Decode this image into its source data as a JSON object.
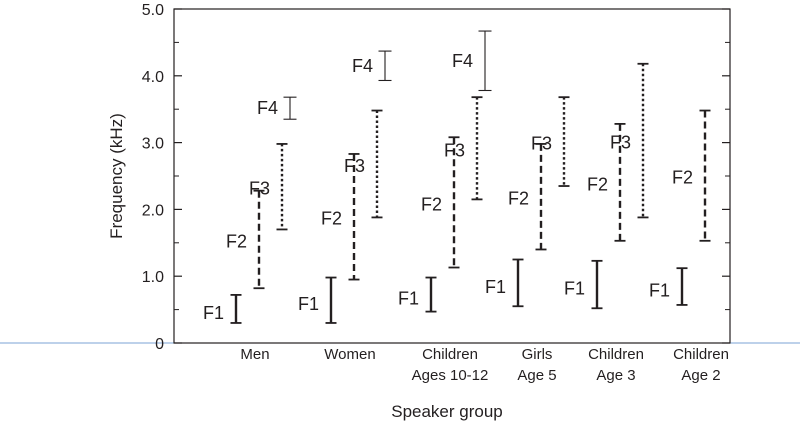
{
  "chart_data": {
    "type": "range",
    "title": "",
    "xlabel": "Speaker group",
    "ylabel": "Frequency (kHz)",
    "ylim": [
      0,
      5.0
    ],
    "yticks": [
      {
        "value": 0,
        "label": "0"
      },
      {
        "value": 1.0,
        "label": "1.0"
      },
      {
        "value": 2.0,
        "label": "2.0"
      },
      {
        "value": 3.0,
        "label": "3.0"
      },
      {
        "value": 4.0,
        "label": "4.0"
      },
      {
        "value": 5.0,
        "label": "5.0"
      }
    ],
    "grid": false,
    "line_styles": {
      "F1": "solid-thick",
      "F2": "dashed",
      "F3": "dotted",
      "F4": "solid-thin"
    },
    "groups": [
      {
        "label_lines": [
          "Men"
        ],
        "ranges": [
          {
            "formant": "F1",
            "low": 0.3,
            "high": 0.72
          },
          {
            "formant": "F2",
            "low": 0.82,
            "high": 2.28
          },
          {
            "formant": "F3",
            "low": 1.7,
            "high": 2.98
          },
          {
            "formant": "F4",
            "low": 3.35,
            "high": 3.68
          }
        ]
      },
      {
        "label_lines": [
          "Women"
        ],
        "ranges": [
          {
            "formant": "F1",
            "low": 0.3,
            "high": 0.98
          },
          {
            "formant": "F2",
            "low": 0.95,
            "high": 2.83
          },
          {
            "formant": "F3",
            "low": 1.88,
            "high": 3.48
          },
          {
            "formant": "F4",
            "low": 3.93,
            "high": 4.37
          }
        ]
      },
      {
        "label_lines": [
          "Children",
          "Ages 10-12"
        ],
        "ranges": [
          {
            "formant": "F1",
            "low": 0.47,
            "high": 0.98
          },
          {
            "formant": "F2",
            "low": 1.13,
            "high": 3.08
          },
          {
            "formant": "F3",
            "low": 2.15,
            "high": 3.68
          },
          {
            "formant": "F4",
            "low": 3.78,
            "high": 4.67
          }
        ]
      },
      {
        "label_lines": [
          "Girls",
          "Age 5"
        ],
        "ranges": [
          {
            "formant": "F1",
            "low": 0.55,
            "high": 1.25
          },
          {
            "formant": "F2",
            "low": 1.4,
            "high": 2.98
          },
          {
            "formant": "F3",
            "low": 2.35,
            "high": 3.68
          }
        ]
      },
      {
        "label_lines": [
          "Children",
          "Age 3"
        ],
        "ranges": [
          {
            "formant": "F1",
            "low": 0.52,
            "high": 1.23
          },
          {
            "formant": "F2",
            "low": 1.53,
            "high": 3.28
          },
          {
            "formant": "F3",
            "low": 1.88,
            "high": 4.18
          }
        ]
      },
      {
        "label_lines": [
          "Children",
          "Age 2"
        ],
        "ranges": [
          {
            "formant": "F1",
            "low": 0.57,
            "high": 1.12
          },
          {
            "formant": "F2",
            "low": 1.53,
            "high": 3.48
          }
        ]
      }
    ]
  }
}
